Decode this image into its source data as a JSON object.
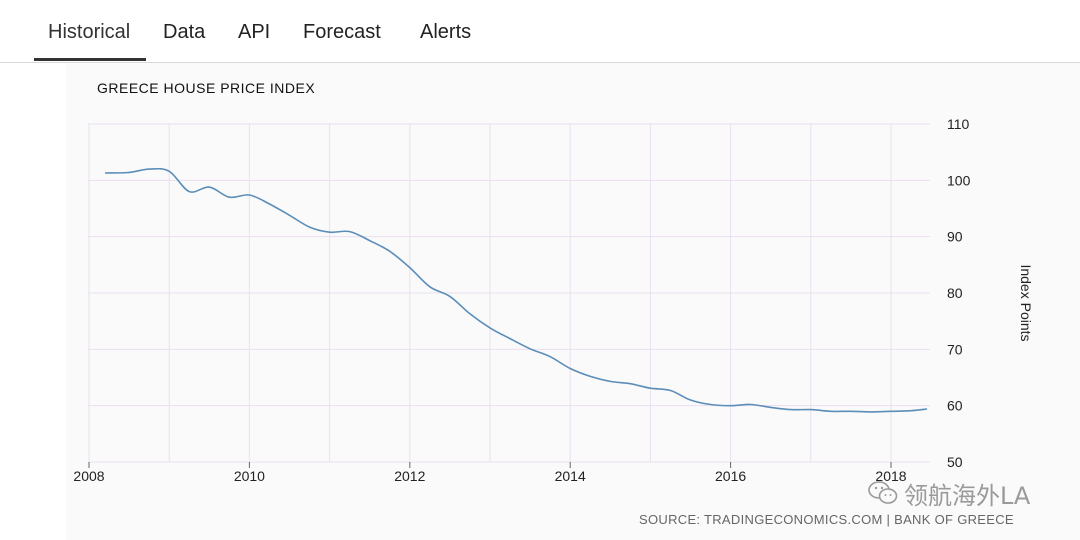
{
  "tabs": [
    {
      "label": "Historical",
      "active": true
    },
    {
      "label": "Data",
      "active": false
    },
    {
      "label": "API",
      "active": false
    },
    {
      "label": "Forecast",
      "active": false
    },
    {
      "label": "Alerts",
      "active": false
    }
  ],
  "chart_data": {
    "type": "line",
    "title": "GREECE HOUSE PRICE INDEX",
    "ylabel": "Index Points",
    "xlabel": "",
    "ylim": [
      50,
      110
    ],
    "xlim": [
      2008,
      2018.6
    ],
    "y_ticks": [
      "50",
      "60",
      "70",
      "80",
      "90",
      "100",
      "110"
    ],
    "x_ticks": [
      "2008",
      "2010",
      "2012",
      "2014",
      "2016",
      "2018"
    ],
    "grid": true,
    "line_color": "#5b8db8",
    "series": [
      {
        "x": [
          2008.2,
          2008.5,
          2008.75,
          2009.0,
          2009.25,
          2009.5,
          2009.75,
          2010.0,
          2010.25,
          2010.5,
          2010.75,
          2011.0,
          2011.25,
          2011.5,
          2011.75,
          2012.0,
          2012.25,
          2012.5,
          2012.75,
          2013.0,
          2013.25,
          2013.5,
          2013.75,
          2014.0,
          2014.25,
          2014.5,
          2014.75,
          2015.0,
          2015.25,
          2015.5,
          2015.75,
          2016.0,
          2016.25,
          2016.5,
          2016.75,
          2017.0,
          2017.25,
          2017.5,
          2017.75,
          2018.0,
          2018.25,
          2018.45
        ],
        "y": [
          101.3,
          101.4,
          102.0,
          101.6,
          98.0,
          98.8,
          97.0,
          97.4,
          95.8,
          93.8,
          91.7,
          90.8,
          90.9,
          89.3,
          87.4,
          84.5,
          81.1,
          79.4,
          76.3,
          73.8,
          71.9,
          70.1,
          68.7,
          66.6,
          65.2,
          64.3,
          63.9,
          63.1,
          62.7,
          61.0,
          60.2,
          60.0,
          60.2,
          59.7,
          59.3,
          59.3,
          59.0,
          59.0,
          58.9,
          59.0,
          59.1,
          59.4
        ]
      }
    ]
  },
  "watermark": {
    "text": "领航海外LA",
    "icon": "wechat-icon"
  },
  "source": "SOURCE: TRADINGECONOMICS.COM | BANK OF GREECE"
}
